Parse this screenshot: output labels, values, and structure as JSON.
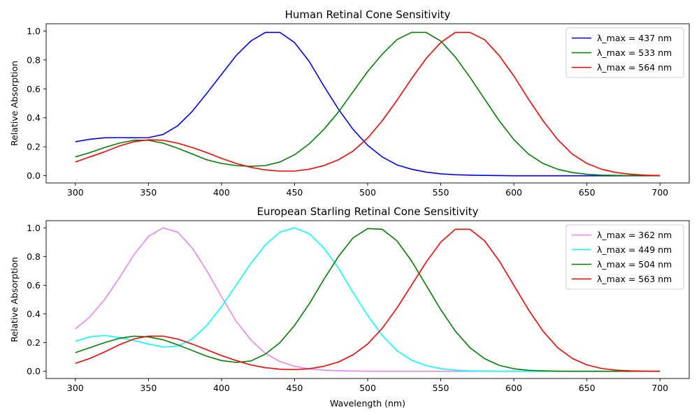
{
  "chart_data": [
    {
      "type": "line",
      "title": "Human Retinal Cone Sensitivity",
      "xlabel": "",
      "ylabel": "Relative Absorption",
      "xlim": [
        280,
        720
      ],
      "ylim": [
        -0.05,
        1.05
      ],
      "xticks": [
        300,
        350,
        400,
        450,
        500,
        550,
        600,
        650,
        700
      ],
      "yticks": [
        0.0,
        0.2,
        0.4,
        0.6,
        0.8,
        1.0
      ],
      "xtick_labels": [
        "300",
        "350",
        "400",
        "450",
        "500",
        "550",
        "600",
        "650",
        "700"
      ],
      "ytick_labels": [
        "0.0",
        "0.2",
        "0.4",
        "0.6",
        "0.8",
        "1.0"
      ],
      "grid": false,
      "legend_position": "top-right",
      "x": [
        300,
        310,
        320,
        330,
        340,
        350,
        360,
        370,
        380,
        390,
        400,
        410,
        420,
        430,
        440,
        450,
        460,
        470,
        480,
        490,
        500,
        510,
        520,
        530,
        540,
        550,
        560,
        570,
        580,
        590,
        600,
        610,
        620,
        630,
        640,
        650,
        660,
        670,
        680,
        690,
        700
      ],
      "series": [
        {
          "name": "λ_max = 437 nm",
          "color": "#0000ff",
          "values": [
            0.235,
            0.252,
            0.262,
            0.263,
            0.262,
            0.263,
            0.285,
            0.345,
            0.445,
            0.57,
            0.7,
            0.83,
            0.93,
            0.99,
            0.99,
            0.92,
            0.79,
            0.62,
            0.46,
            0.32,
            0.21,
            0.13,
            0.075,
            0.045,
            0.025,
            0.013,
            0.007,
            0.004,
            0.002,
            0.001,
            0.0,
            0.0,
            0.0,
            0.0,
            0.0,
            0.0,
            0.0,
            0.0,
            0.0,
            0.0,
            0.0
          ]
        },
        {
          "name": "λ_max = 533 nm",
          "color": "#008000",
          "values": [
            0.13,
            0.16,
            0.195,
            0.225,
            0.245,
            0.245,
            0.225,
            0.19,
            0.15,
            0.11,
            0.085,
            0.07,
            0.065,
            0.07,
            0.095,
            0.145,
            0.22,
            0.32,
            0.44,
            0.58,
            0.72,
            0.84,
            0.94,
            0.99,
            0.99,
            0.93,
            0.82,
            0.68,
            0.53,
            0.38,
            0.25,
            0.15,
            0.085,
            0.045,
            0.022,
            0.01,
            0.004,
            0.002,
            0.001,
            0.0,
            0.0
          ]
        },
        {
          "name": "λ_max = 564 nm",
          "color": "#ff0000",
          "values": [
            0.095,
            0.13,
            0.165,
            0.205,
            0.235,
            0.248,
            0.245,
            0.225,
            0.195,
            0.16,
            0.12,
            0.085,
            0.058,
            0.04,
            0.032,
            0.032,
            0.045,
            0.07,
            0.11,
            0.17,
            0.26,
            0.38,
            0.52,
            0.67,
            0.81,
            0.92,
            0.99,
            0.99,
            0.94,
            0.83,
            0.69,
            0.53,
            0.38,
            0.25,
            0.15,
            0.085,
            0.045,
            0.022,
            0.01,
            0.004,
            0.001
          ]
        }
      ]
    },
    {
      "type": "line",
      "title": "European Starling Retinal Cone Sensitivity",
      "xlabel": "Wavelength (nm)",
      "ylabel": "Relative Absorption",
      "xlim": [
        280,
        720
      ],
      "ylim": [
        -0.05,
        1.05
      ],
      "xticks": [
        300,
        350,
        400,
        450,
        500,
        550,
        600,
        650,
        700
      ],
      "yticks": [
        0.0,
        0.2,
        0.4,
        0.6,
        0.8,
        1.0
      ],
      "xtick_labels": [
        "300",
        "350",
        "400",
        "450",
        "500",
        "550",
        "600",
        "650",
        "700"
      ],
      "ytick_labels": [
        "0.0",
        "0.2",
        "0.4",
        "0.6",
        "0.8",
        "1.0"
      ],
      "grid": false,
      "legend_position": "top-right",
      "x": [
        300,
        310,
        320,
        330,
        340,
        350,
        360,
        370,
        380,
        390,
        400,
        410,
        420,
        430,
        440,
        450,
        460,
        470,
        480,
        490,
        500,
        510,
        520,
        530,
        540,
        550,
        560,
        570,
        580,
        590,
        600,
        610,
        620,
        630,
        640,
        650,
        660,
        670,
        680,
        690,
        700
      ],
      "series": [
        {
          "name": "λ_max = 362 nm",
          "color": "#ee82ee",
          "values": [
            0.295,
            0.38,
            0.5,
            0.65,
            0.81,
            0.94,
            1.0,
            0.97,
            0.86,
            0.7,
            0.52,
            0.35,
            0.22,
            0.125,
            0.068,
            0.035,
            0.017,
            0.008,
            0.004,
            0.002,
            0.001,
            0.0,
            0.0,
            0.0,
            0.0,
            0.0,
            0.0,
            0.0,
            0.0,
            0.0,
            0.0,
            0.0,
            0.0,
            0.0,
            0.0,
            0.0,
            0.0,
            0.0,
            0.0,
            0.0,
            0.0
          ]
        },
        {
          "name": "λ_max = 449 nm",
          "color": "#00ffff",
          "values": [
            0.21,
            0.24,
            0.25,
            0.235,
            0.215,
            0.19,
            0.17,
            0.175,
            0.225,
            0.32,
            0.45,
            0.6,
            0.75,
            0.88,
            0.97,
            1.0,
            0.96,
            0.86,
            0.72,
            0.55,
            0.39,
            0.25,
            0.145,
            0.078,
            0.04,
            0.019,
            0.008,
            0.003,
            0.001,
            0.0,
            0.0,
            0.0,
            0.0,
            0.0,
            0.0,
            0.0,
            0.0,
            0.0,
            0.0,
            0.0,
            0.0
          ]
        },
        {
          "name": "λ_max = 504 nm",
          "color": "#008000",
          "values": [
            0.13,
            0.165,
            0.2,
            0.23,
            0.245,
            0.24,
            0.22,
            0.185,
            0.145,
            0.105,
            0.075,
            0.062,
            0.072,
            0.12,
            0.2,
            0.32,
            0.47,
            0.64,
            0.8,
            0.93,
            0.995,
            0.99,
            0.91,
            0.77,
            0.6,
            0.43,
            0.28,
            0.165,
            0.088,
            0.042,
            0.018,
            0.007,
            0.003,
            0.001,
            0.0,
            0.0,
            0.0,
            0.0,
            0.0,
            0.0,
            0.0
          ]
        },
        {
          "name": "λ_max = 563 nm",
          "color": "#ff0000",
          "values": [
            0.055,
            0.09,
            0.135,
            0.185,
            0.225,
            0.245,
            0.245,
            0.225,
            0.19,
            0.15,
            0.11,
            0.075,
            0.045,
            0.025,
            0.015,
            0.012,
            0.018,
            0.035,
            0.065,
            0.115,
            0.19,
            0.3,
            0.44,
            0.6,
            0.76,
            0.9,
            0.99,
            0.99,
            0.91,
            0.77,
            0.6,
            0.43,
            0.28,
            0.165,
            0.09,
            0.045,
            0.02,
            0.008,
            0.003,
            0.001,
            0.0
          ]
        }
      ]
    }
  ]
}
